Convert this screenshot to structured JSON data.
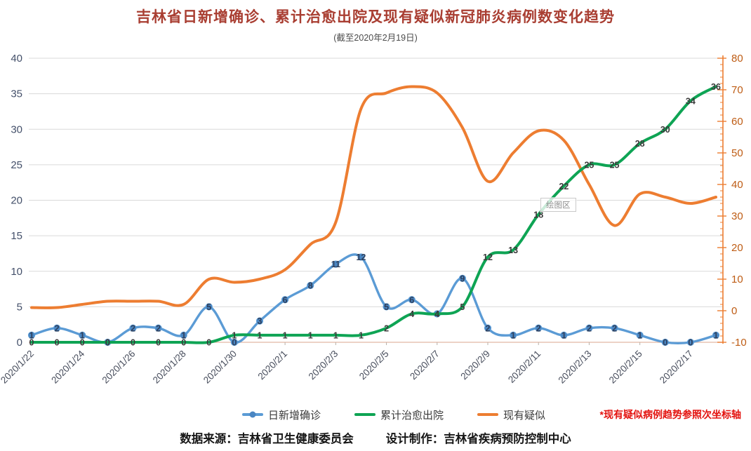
{
  "chart_data": {
    "type": "line",
    "title": "吉林省日新增确诊、累计治愈出院及现有疑似新冠肺炎病例数变化趋势",
    "subtitle": "(截至2020年2月19日)",
    "x": [
      "2020/1/22",
      "2020/1/23",
      "2020/1/24",
      "2020/1/25",
      "2020/1/26",
      "2020/1/27",
      "2020/1/28",
      "2020/1/29",
      "2020/1/30",
      "2020/1/31",
      "2020/2/1",
      "2020/2/2",
      "2020/2/3",
      "2020/2/4",
      "2020/2/5",
      "2020/2/6",
      "2020/2/7",
      "2020/2/8",
      "2020/2/9",
      "2020/2/10",
      "2020/2/11",
      "2020/2/12",
      "2020/2/13",
      "2020/2/14",
      "2020/2/15",
      "2020/2/16",
      "2020/2/17",
      "2020/2/18"
    ],
    "x_tick_labels": [
      "2020/1/22",
      "2020/1/24",
      "2020/1/26",
      "2020/1/28",
      "2020/1/30",
      "2020/2/1",
      "2020/2/3",
      "2020/2/5",
      "2020/2/7",
      "2020/2/9",
      "2020/2/11",
      "2020/2/13",
      "2020/2/15",
      "2020/2/17"
    ],
    "series": [
      {
        "name": "日新增确诊",
        "axis": "left",
        "color": "#5b9bd5",
        "marker_color": "#4a86c2",
        "label_color": "#2e3f5c",
        "marker": true,
        "show_labels": true,
        "values": [
          1,
          2,
          1,
          0,
          2,
          2,
          1,
          5,
          0,
          3,
          6,
          8,
          11,
          12,
          5,
          6,
          4,
          9,
          2,
          1,
          2,
          1,
          2,
          2,
          1,
          0,
          0,
          1
        ]
      },
      {
        "name": "累计治愈出院",
        "axis": "left",
        "color": "#0ea454",
        "label_color": "#3a3a3a",
        "marker": false,
        "show_labels": true,
        "values": [
          0,
          0,
          0,
          0,
          0,
          0,
          0,
          0,
          1,
          1,
          1,
          1,
          1,
          1,
          2,
          4,
          4,
          5,
          12,
          13,
          18,
          22,
          25,
          25,
          28,
          30,
          34,
          36
        ]
      },
      {
        "name": "现有疑似",
        "axis": "right",
        "color": "#ed7d31",
        "marker": false,
        "show_labels": false,
        "values": [
          1,
          1,
          2,
          3,
          3,
          3,
          2,
          10,
          9,
          10,
          13,
          21,
          28,
          64,
          69,
          71,
          69,
          58,
          41,
          50,
          57,
          54,
          40,
          27,
          37,
          36,
          34,
          36
        ]
      }
    ],
    "left_axis": {
      "min": 0,
      "max": 40,
      "step": 5,
      "tick_labels": [
        "0",
        "5",
        "10",
        "15",
        "20",
        "25",
        "30",
        "35",
        "40"
      ],
      "color": "#44506a"
    },
    "right_axis": {
      "min": -10,
      "max": 80,
      "step": 10,
      "tick_labels": [
        "-10",
        "0",
        "10",
        "20",
        "30",
        "40",
        "50",
        "60",
        "70",
        "80"
      ],
      "color": "#be5c14"
    },
    "grid": true,
    "legend_position": "bottom",
    "legend_note": "*现有疑似病例趋势参照次坐标轴",
    "plot_area_tooltip": "绘图区"
  },
  "footer": {
    "source": "数据来源：吉林省卫生健康委员会",
    "credit": "设计制作：吉林省疾病预防控制中心"
  }
}
